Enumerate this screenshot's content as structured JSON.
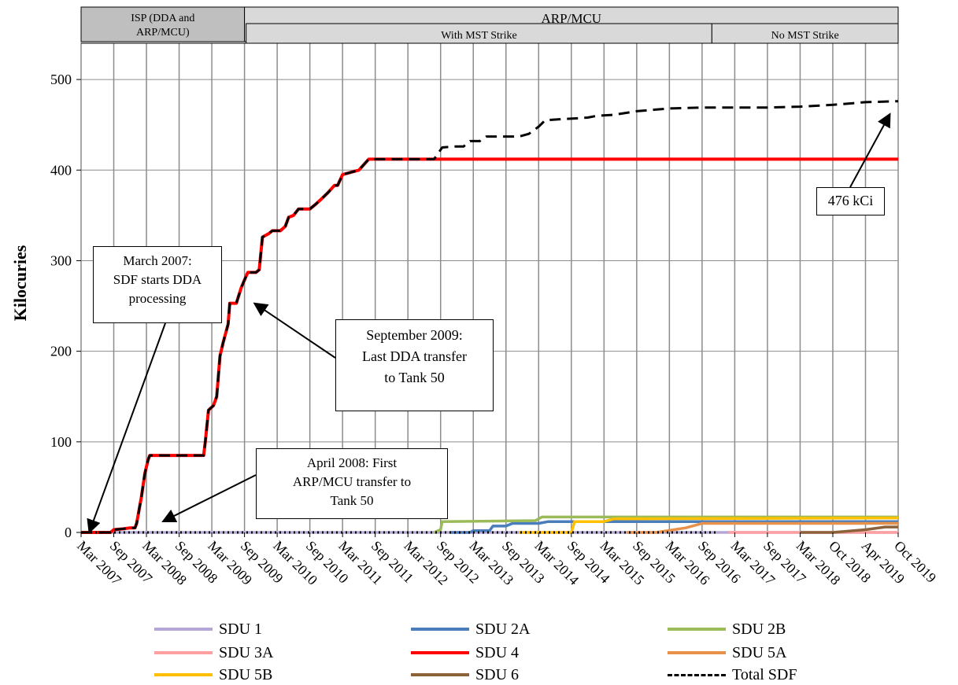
{
  "chart_data": {
    "type": "line",
    "title": "",
    "ylabel": "Kilocuries",
    "xlabel": "",
    "ylim": [
      0,
      540
    ],
    "yticks": [
      0,
      100,
      200,
      300,
      400,
      500
    ],
    "x_tick_labels": [
      "Mar 2007",
      "Sep 2007",
      "Mar 2008",
      "Sep 2008",
      "Mar 2009",
      "Sep 2009",
      "Mar 2010",
      "Sep 2010",
      "Mar 2011",
      "Sep 2011",
      "Mar 2012",
      "Sep 2012",
      "Mar 2013",
      "Sep 2013",
      "Mar 2014",
      "Sep 2014",
      "Mar 2015",
      "Sep 2015",
      "Mar 2016",
      "Sep 2016",
      "Mar 2017",
      "Sep 2017",
      "Mar 2018",
      "Oct 2018",
      "Apr 2019",
      "Oct 2019"
    ],
    "grid": true,
    "legend_position": "bottom",
    "top_bands": {
      "row1": [
        {
          "label": "ISP (DDA and\nARP/MCU)",
          "from": 0,
          "to": 5,
          "fill": "#bfbfbf"
        },
        {
          "label": "ARP/MCU",
          "from": 5,
          "to": 25,
          "fill": "#d9d9d9"
        }
      ],
      "row2": [
        {
          "label": "With MST Strike",
          "from": 5.05,
          "to": 19.3,
          "fill": "#d9d9d9"
        },
        {
          "label": "No MST Strike",
          "from": 19.3,
          "to": 25,
          "fill": "#d9d9d9"
        }
      ]
    },
    "series": [
      {
        "name": "SDU 1",
        "color": "#b4a7d6",
        "dash": "solid",
        "points": [
          [
            0,
            0
          ],
          [
            25,
            0
          ]
        ]
      },
      {
        "name": "SDU 2A",
        "color": "#4a7ebb",
        "dash": "solid",
        "points": [
          [
            11.3,
            0
          ],
          [
            11.9,
            0
          ],
          [
            12,
            2
          ],
          [
            12.5,
            2
          ],
          [
            12.6,
            7
          ],
          [
            13,
            7
          ],
          [
            13.2,
            10
          ],
          [
            14,
            10
          ],
          [
            14.3,
            12
          ],
          [
            25,
            12
          ]
        ]
      },
      {
        "name": "SDU 2B",
        "color": "#9bbb59",
        "dash": "solid",
        "points": [
          [
            10.8,
            0
          ],
          [
            11,
            3
          ],
          [
            11.05,
            12
          ],
          [
            13.9,
            13
          ],
          [
            14.1,
            17
          ],
          [
            25,
            17
          ]
        ]
      },
      {
        "name": "SDU 3A",
        "color": "#ffa0a0",
        "dash": "solid",
        "points": [
          [
            19.8,
            0
          ],
          [
            25,
            0
          ]
        ]
      },
      {
        "name": "SDU 4",
        "color": "#ff0000",
        "dash": "solid",
        "points": [
          [
            0,
            0
          ],
          [
            0.9,
            0
          ],
          [
            1,
            3
          ],
          [
            1.3,
            4
          ],
          [
            1.5,
            5
          ],
          [
            1.65,
            5
          ],
          [
            1.7,
            10
          ],
          [
            1.85,
            40
          ],
          [
            1.95,
            65
          ],
          [
            2.05,
            80
          ],
          [
            2.1,
            85
          ],
          [
            3.75,
            85
          ],
          [
            3.8,
            100
          ],
          [
            3.9,
            135
          ],
          [
            4.05,
            140
          ],
          [
            4.15,
            150
          ],
          [
            4.25,
            195
          ],
          [
            4.35,
            210
          ],
          [
            4.5,
            230
          ],
          [
            4.55,
            253
          ],
          [
            4.75,
            253
          ],
          [
            4.9,
            270
          ],
          [
            5.05,
            283
          ],
          [
            5.1,
            287
          ],
          [
            5.35,
            287
          ],
          [
            5.45,
            290
          ],
          [
            5.55,
            326
          ],
          [
            5.75,
            330
          ],
          [
            5.85,
            333
          ],
          [
            6.1,
            333
          ],
          [
            6.25,
            338
          ],
          [
            6.35,
            348
          ],
          [
            6.5,
            350
          ],
          [
            6.65,
            357
          ],
          [
            7,
            357
          ],
          [
            7.2,
            363
          ],
          [
            7.35,
            368
          ],
          [
            7.55,
            375
          ],
          [
            7.75,
            383
          ],
          [
            7.85,
            383
          ],
          [
            8,
            395
          ],
          [
            8.3,
            398
          ],
          [
            8.5,
            400
          ],
          [
            8.8,
            412
          ],
          [
            25,
            412
          ]
        ]
      },
      {
        "name": "SDU 5A",
        "color": "#e8914a",
        "dash": "solid",
        "points": [
          [
            16.7,
            0
          ],
          [
            17.6,
            0
          ],
          [
            18.5,
            5
          ],
          [
            19,
            10
          ],
          [
            25,
            10
          ]
        ]
      },
      {
        "name": "SDU 5B",
        "color": "#ffc000",
        "dash": "solid",
        "points": [
          [
            13.4,
            0
          ],
          [
            15,
            0
          ],
          [
            15.1,
            12
          ],
          [
            16,
            12
          ],
          [
            16.3,
            15
          ],
          [
            25,
            16
          ]
        ]
      },
      {
        "name": "SDU 6",
        "color": "#8c6239",
        "dash": "solid",
        "points": [
          [
            22,
            0
          ],
          [
            23,
            0
          ],
          [
            24,
            3
          ],
          [
            24.6,
            6
          ],
          [
            25,
            6
          ]
        ]
      },
      {
        "name": "Total SDF",
        "color": "#000000",
        "dash": "dashed",
        "points": [
          [
            0,
            0
          ],
          [
            0.9,
            0
          ],
          [
            1,
            3
          ],
          [
            1.3,
            4
          ],
          [
            1.5,
            5
          ],
          [
            1.65,
            5
          ],
          [
            1.7,
            10
          ],
          [
            1.85,
            40
          ],
          [
            1.95,
            65
          ],
          [
            2.05,
            80
          ],
          [
            2.1,
            85
          ],
          [
            3.75,
            85
          ],
          [
            3.8,
            100
          ],
          [
            3.9,
            135
          ],
          [
            4.05,
            140
          ],
          [
            4.15,
            150
          ],
          [
            4.25,
            195
          ],
          [
            4.35,
            210
          ],
          [
            4.5,
            230
          ],
          [
            4.55,
            253
          ],
          [
            4.75,
            253
          ],
          [
            4.9,
            270
          ],
          [
            5.05,
            283
          ],
          [
            5.1,
            287
          ],
          [
            5.35,
            287
          ],
          [
            5.45,
            290
          ],
          [
            5.55,
            326
          ],
          [
            5.75,
            330
          ],
          [
            5.85,
            333
          ],
          [
            6.1,
            333
          ],
          [
            6.25,
            338
          ],
          [
            6.35,
            348
          ],
          [
            6.5,
            350
          ],
          [
            6.65,
            357
          ],
          [
            7,
            357
          ],
          [
            7.2,
            363
          ],
          [
            7.35,
            368
          ],
          [
            7.55,
            375
          ],
          [
            7.75,
            383
          ],
          [
            7.85,
            383
          ],
          [
            8,
            395
          ],
          [
            8.3,
            398
          ],
          [
            8.5,
            400
          ],
          [
            8.8,
            412
          ],
          [
            10.8,
            412
          ],
          [
            11.05,
            425
          ],
          [
            11.4,
            426
          ],
          [
            11.7,
            426
          ],
          [
            11.9,
            432
          ],
          [
            12.2,
            432
          ],
          [
            12.4,
            437
          ],
          [
            13.4,
            437
          ],
          [
            13.7,
            440
          ],
          [
            14,
            448
          ],
          [
            14.2,
            455
          ],
          [
            14.6,
            456
          ],
          [
            15.1,
            457
          ],
          [
            15.5,
            458
          ],
          [
            15.8,
            460
          ],
          [
            16.3,
            461
          ],
          [
            17,
            465
          ],
          [
            18,
            468
          ],
          [
            19,
            469
          ],
          [
            21,
            469
          ],
          [
            22,
            470
          ],
          [
            23,
            472
          ],
          [
            24,
            475
          ],
          [
            25,
            476
          ]
        ]
      },
      {
        "name": "dotted-baseline",
        "color": "#000000",
        "dash": "dotted",
        "legend": false,
        "points": [
          [
            0,
            0
          ],
          [
            19.5,
            0
          ]
        ]
      }
    ],
    "annotations": [
      {
        "id": "march-2007",
        "text": "March 2007:\nSDF starts DDA\nprocessing",
        "arrow_to": [
          0.25,
          0
        ]
      },
      {
        "id": "april-2008",
        "text": "April 2008:  First\nARP/MCU transfer to\nTank 50",
        "arrow_to": [
          2.5,
          12
        ]
      },
      {
        "id": "september-2009",
        "text": "September 2009:\nLast DDA transfer\nto Tank 50",
        "arrow_to": [
          5.3,
          253
        ]
      },
      {
        "id": "total-476",
        "text": "476 kCi",
        "arrow_to": [
          24.75,
          462
        ]
      }
    ]
  },
  "legend": [
    {
      "label": "SDU 1",
      "color": "#b4a7d6",
      "dash": false
    },
    {
      "label": "SDU 2A",
      "color": "#4a7ebb",
      "dash": false
    },
    {
      "label": "SDU 2B",
      "color": "#9bbb59",
      "dash": false
    },
    {
      "label": "SDU 3A",
      "color": "#ffa0a0",
      "dash": false
    },
    {
      "label": "SDU 4",
      "color": "#ff0000",
      "dash": false
    },
    {
      "label": "SDU 5A",
      "color": "#e8914a",
      "dash": false
    },
    {
      "label": "SDU 5B",
      "color": "#ffc000",
      "dash": false
    },
    {
      "label": "SDU 6",
      "color": "#8c6239",
      "dash": false
    },
    {
      "label": "Total SDF",
      "color": "#000000",
      "dash": true
    }
  ]
}
